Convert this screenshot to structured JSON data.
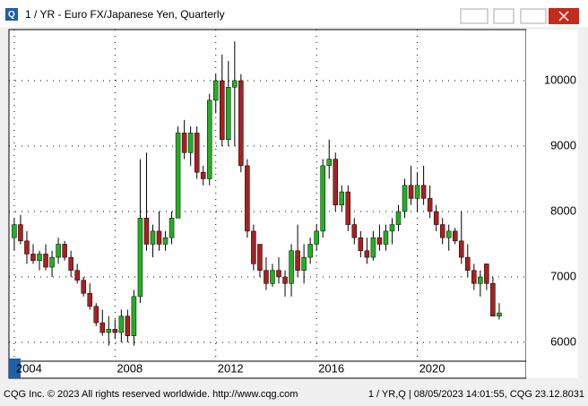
{
  "chart_data": {
    "type": "candlestick",
    "title": "1 / YR - Euro FX/Japanese Yen, Quarterly",
    "footer_left": "CQG Inc. © 2023 All rights reserved worldwide. http://www.cqg.com",
    "footer_right": "1 / YR,Q | 08/05/2023 14:01:55, CQG 23.12.8031",
    "up_color": "#22b022",
    "down_color": "#a82020",
    "grid": true,
    "xlim": [
      2003.79,
      2024.32
    ],
    "xticks": [
      2004,
      2008,
      2012,
      2016,
      2020
    ],
    "ylim": [
      5712,
      10781
    ],
    "yticks": [
      6000,
      7000,
      8000,
      9000,
      10000
    ],
    "x": [
      2004,
      2004.25,
      2004.5,
      2004.75,
      2005,
      2005.25,
      2005.5,
      2005.75,
      2006,
      2006.25,
      2006.5,
      2006.75,
      2007,
      2007.25,
      2007.5,
      2007.75,
      2008,
      2008.25,
      2008.5,
      2008.75,
      2009,
      2009.25,
      2009.5,
      2009.75,
      2010,
      2010.25,
      2010.5,
      2010.75,
      2011,
      2011.25,
      2011.5,
      2011.75,
      2012,
      2012.25,
      2012.5,
      2012.75,
      2013,
      2013.25,
      2013.5,
      2013.75,
      2014,
      2014.25,
      2014.5,
      2014.75,
      2015,
      2015.25,
      2015.5,
      2015.75,
      2016,
      2016.25,
      2016.5,
      2016.75,
      2017,
      2017.25,
      2017.5,
      2017.75,
      2018,
      2018.25,
      2018.5,
      2018.75,
      2019,
      2019.25,
      2019.5,
      2019.75,
      2020,
      2020.25,
      2020.5,
      2020.75,
      2021,
      2021.25,
      2021.5,
      2021.75,
      2022,
      2022.25,
      2022.5,
      2022.75,
      2023,
      2023.25
    ],
    "open": [
      7600,
      7800,
      7550,
      7350,
      7250,
      7350,
      7150,
      7300,
      7500,
      7300,
      7100,
      6950,
      6750,
      6550,
      6300,
      6150,
      6200,
      6150,
      6400,
      6100,
      6700,
      7900,
      7500,
      7700,
      7500,
      7600,
      7900,
      9200,
      8900,
      9200,
      8600,
      8500,
      9700,
      10000,
      9100,
      9900,
      10000,
      8700,
      7700,
      7500,
      7100,
      6900,
      7100,
      7000,
      6900,
      7400,
      7100,
      7300,
      7500,
      7700,
      8700,
      8800,
      8100,
      8300,
      7800,
      7600,
      7400,
      7300,
      7600,
      7500,
      7700,
      7800,
      8000,
      8400,
      8200,
      8400,
      8200,
      8000,
      7800,
      7600,
      7700,
      7550,
      7300,
      7100,
      6900,
      7200,
      6900,
      6400
    ],
    "high": [
      7900,
      7950,
      7700,
      7500,
      7400,
      7500,
      7400,
      7600,
      7550,
      7400,
      7200,
      7000,
      6900,
      6600,
      6500,
      6400,
      6350,
      6500,
      6500,
      6800,
      8800,
      8900,
      7800,
      8000,
      7700,
      8000,
      9300,
      9400,
      9300,
      9300,
      8700,
      9800,
      10100,
      10400,
      10300,
      10600,
      10100,
      8800,
      7800,
      7500,
      7300,
      7200,
      7300,
      7100,
      7500,
      7800,
      7500,
      7600,
      7800,
      8800,
      9100,
      8900,
      8400,
      8400,
      7900,
      7700,
      7600,
      7700,
      7800,
      7800,
      7900,
      8100,
      8500,
      8700,
      8600,
      8700,
      8400,
      8100,
      7900,
      7800,
      7750,
      8000,
      7500,
      7200,
      7100,
      7200,
      7000,
      6600
    ],
    "low": [
      7400,
      7500,
      7200,
      7200,
      7100,
      7100,
      7000,
      7200,
      7250,
      7000,
      6900,
      6700,
      6500,
      6250,
      6100,
      5950,
      6050,
      6000,
      6000,
      5950,
      6600,
      7400,
      7300,
      7400,
      7400,
      7500,
      7900,
      8800,
      8700,
      8500,
      8400,
      8400,
      9500,
      9000,
      9000,
      9000,
      8600,
      7600,
      7100,
      7000,
      6800,
      6850,
      6900,
      6700,
      6700,
      7000,
      6900,
      7200,
      7400,
      7600,
      8500,
      8000,
      8000,
      7700,
      7500,
      7300,
      7200,
      7250,
      7400,
      7400,
      7500,
      7700,
      7900,
      8100,
      8000,
      8100,
      7900,
      7700,
      7500,
      7400,
      7500,
      7200,
      7000,
      6800,
      6700,
      6800,
      6400,
      6350
    ],
    "close": [
      7800,
      7550,
      7350,
      7250,
      7350,
      7150,
      7300,
      7500,
      7300,
      7100,
      6950,
      6750,
      6550,
      6300,
      6150,
      6200,
      6150,
      6400,
      6100,
      6700,
      7900,
      7500,
      7700,
      7500,
      7600,
      7900,
      9200,
      8900,
      9200,
      8600,
      8500,
      9700,
      10000,
      9100,
      9900,
      10000,
      8700,
      7700,
      7200,
      7100,
      6900,
      7100,
      7000,
      6900,
      7400,
      7100,
      7300,
      7500,
      7700,
      8700,
      8800,
      8100,
      8300,
      7800,
      7600,
      7400,
      7300,
      7600,
      7500,
      7700,
      7800,
      8000,
      8400,
      8200,
      8400,
      8200,
      8000,
      7800,
      7600,
      7700,
      7550,
      7300,
      7100,
      6900,
      7000,
      6900,
      6400,
      6450
    ]
  }
}
